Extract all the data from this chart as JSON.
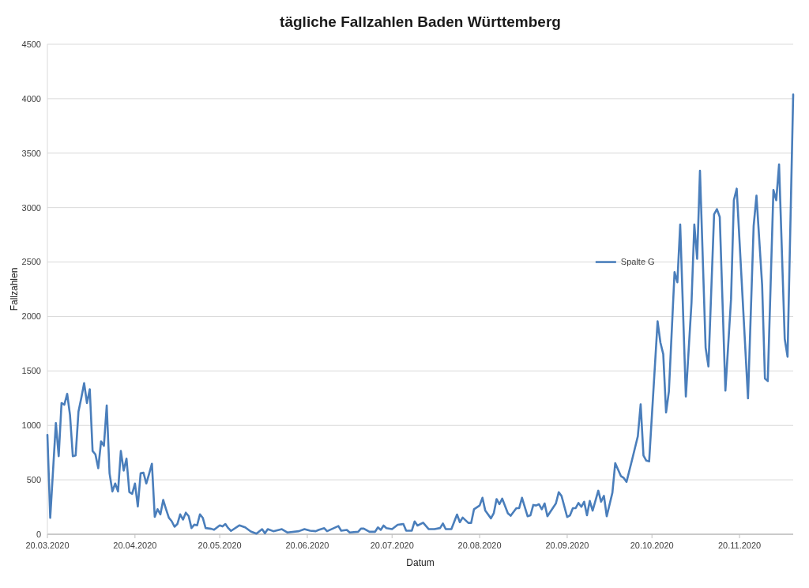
{
  "chart_data": {
    "type": "line",
    "title": "tägliche Fallzahlen Baden Württemberg",
    "xlabel": "Datum",
    "ylabel": "Fallzahlen",
    "x": [
      "2020-03-20",
      "2020-03-21",
      "2020-03-23",
      "2020-03-24",
      "2020-03-25",
      "2020-03-26",
      "2020-03-27",
      "2020-03-28",
      "2020-03-29",
      "2020-03-30",
      "2020-03-31",
      "2020-04-01",
      "2020-04-02",
      "2020-04-03",
      "2020-04-04",
      "2020-04-05",
      "2020-04-06",
      "2020-04-07",
      "2020-04-08",
      "2020-04-09",
      "2020-04-10",
      "2020-04-11",
      "2020-04-12",
      "2020-04-13",
      "2020-04-14",
      "2020-04-15",
      "2020-04-16",
      "2020-04-17",
      "2020-04-18",
      "2020-04-19",
      "2020-04-20",
      "2020-04-21",
      "2020-04-22",
      "2020-04-23",
      "2020-04-24",
      "2020-04-25",
      "2020-04-26",
      "2020-04-27",
      "2020-04-28",
      "2020-04-29",
      "2020-04-30",
      "2020-05-01",
      "2020-05-02",
      "2020-05-03",
      "2020-05-04",
      "2020-05-05",
      "2020-05-06",
      "2020-05-07",
      "2020-05-08",
      "2020-05-09",
      "2020-05-10",
      "2020-05-11",
      "2020-05-12",
      "2020-05-13",
      "2020-05-14",
      "2020-05-15",
      "2020-05-17",
      "2020-05-18",
      "2020-05-20",
      "2020-05-21",
      "2020-05-22",
      "2020-05-23",
      "2020-05-24",
      "2020-05-27",
      "2020-05-29",
      "2020-05-31",
      "2020-06-02",
      "2020-06-04",
      "2020-06-05",
      "2020-06-06",
      "2020-06-08",
      "2020-06-11",
      "2020-06-13",
      "2020-06-17",
      "2020-06-19",
      "2020-06-21",
      "2020-06-23",
      "2020-06-24",
      "2020-06-26",
      "2020-06-27",
      "2020-07-01",
      "2020-07-02",
      "2020-07-04",
      "2020-07-05",
      "2020-07-08",
      "2020-07-09",
      "2020-07-10",
      "2020-07-12",
      "2020-07-14",
      "2020-07-15",
      "2020-07-16",
      "2020-07-17",
      "2020-07-18",
      "2020-07-20",
      "2020-07-22",
      "2020-07-24",
      "2020-07-25",
      "2020-07-27",
      "2020-07-28",
      "2020-07-29",
      "2020-07-31",
      "2020-08-02",
      "2020-08-04",
      "2020-08-06",
      "2020-08-07",
      "2020-08-08",
      "2020-08-10",
      "2020-08-12",
      "2020-08-13",
      "2020-08-14",
      "2020-08-16",
      "2020-08-17",
      "2020-08-18",
      "2020-08-20",
      "2020-08-21",
      "2020-08-22",
      "2020-08-24",
      "2020-08-25",
      "2020-08-26",
      "2020-08-27",
      "2020-08-28",
      "2020-08-30",
      "2020-08-31",
      "2020-09-02",
      "2020-09-03",
      "2020-09-04",
      "2020-09-06",
      "2020-09-07",
      "2020-09-08",
      "2020-09-09",
      "2020-09-10",
      "2020-09-11",
      "2020-09-12",
      "2020-09-13",
      "2020-09-14",
      "2020-09-16",
      "2020-09-17",
      "2020-09-18",
      "2020-09-20",
      "2020-09-21",
      "2020-09-22",
      "2020-09-23",
      "2020-09-24",
      "2020-09-25",
      "2020-09-26",
      "2020-09-27",
      "2020-09-28",
      "2020-09-29",
      "2020-10-01",
      "2020-10-02",
      "2020-10-03",
      "2020-10-04",
      "2020-10-06",
      "2020-10-07",
      "2020-10-09",
      "2020-10-10",
      "2020-10-11",
      "2020-10-13",
      "2020-10-15",
      "2020-10-16",
      "2020-10-17",
      "2020-10-18",
      "2020-10-19",
      "2020-10-22",
      "2020-10-23",
      "2020-10-24",
      "2020-10-25",
      "2020-10-26",
      "2020-10-28",
      "2020-10-29",
      "2020-10-30",
      "2020-11-01",
      "2020-11-03",
      "2020-11-04",
      "2020-11-05",
      "2020-11-06",
      "2020-11-08",
      "2020-11-09",
      "2020-11-11",
      "2020-11-12",
      "2020-11-13",
      "2020-11-15",
      "2020-11-17",
      "2020-11-18",
      "2020-11-19",
      "2020-11-23",
      "2020-11-25",
      "2020-11-26",
      "2020-11-28",
      "2020-11-29",
      "2020-11-30",
      "2020-12-02",
      "2020-12-03",
      "2020-12-04",
      "2020-12-06",
      "2020-12-07",
      "2020-12-09"
    ],
    "series": [
      {
        "name": "Spalte G",
        "color": "#4a7ebb",
        "values": [
          913,
          151,
          1022,
          717,
          1205,
          1190,
          1290,
          1095,
          717,
          724,
          1127,
          1252,
          1388,
          1205,
          1331,
          765,
          733,
          607,
          853,
          812,
          1183,
          560,
          393,
          466,
          393,
          765,
          585,
          695,
          387,
          371,
          466,
          255,
          560,
          566,
          466,
          554,
          648,
          160,
          230,
          183,
          315,
          230,
          151,
          120,
          69,
          94,
          183,
          135,
          198,
          167,
          57,
          88,
          82,
          183,
          151,
          57,
          50,
          41,
          82,
          72,
          94,
          57,
          31,
          82,
          63,
          25,
          6,
          47,
          9,
          47,
          28,
          47,
          16,
          28,
          47,
          33,
          28,
          40,
          56,
          28,
          75,
          33,
          40,
          16,
          23,
          52,
          52,
          23,
          23,
          63,
          40,
          80,
          56,
          47,
          87,
          94,
          33,
          33,
          118,
          80,
          106,
          47,
          47,
          57,
          99,
          47,
          47,
          181,
          111,
          153,
          104,
          104,
          229,
          264,
          335,
          217,
          146,
          193,
          323,
          276,
          327,
          193,
          170,
          240,
          240,
          335,
          165,
          174,
          269,
          264,
          276,
          229,
          283,
          165,
          205,
          283,
          386,
          351,
          158,
          174,
          240,
          240,
          287,
          252,
          299,
          174,
          306,
          217,
          400,
          299,
          353,
          165,
          382,
          653,
          535,
          518,
          481,
          688,
          900,
          1194,
          723,
          676,
          669,
          1955,
          1760,
          1654,
          1119,
          1312,
          2408,
          2314,
          2844,
          1265,
          2125,
          2844,
          2530,
          3338,
          1713,
          1541,
          2938,
          2985,
          2914,
          1319,
          2160,
          3068,
          3174,
          1249,
          2832,
          3110,
          2290,
          1430,
          1407,
          3162,
          3068,
          3397,
          1795,
          1630,
          4038
        ]
      }
    ],
    "xlim": [
      "2020-03-20",
      "2020-12-09"
    ],
    "xticks": [
      {
        "value": "2020-03-20",
        "label": "20.03.2020"
      },
      {
        "value": "2020-04-20",
        "label": "20.04.2020"
      },
      {
        "value": "2020-05-20",
        "label": "20.05.2020"
      },
      {
        "value": "2020-06-20",
        "label": "20.06.2020"
      },
      {
        "value": "2020-07-20",
        "label": "20.07.2020"
      },
      {
        "value": "2020-08-20",
        "label": "20.08.2020"
      },
      {
        "value": "2020-09-20",
        "label": "20.09.2020"
      },
      {
        "value": "2020-10-20",
        "label": "20.10.2020"
      },
      {
        "value": "2020-11-20",
        "label": "20.11.2020"
      }
    ],
    "ylim": [
      0,
      4500
    ],
    "yticks": [
      0,
      500,
      1000,
      1500,
      2000,
      2500,
      3000,
      3500,
      4000,
      4500
    ],
    "grid": "y",
    "legend": "right",
    "marker": "none",
    "line_style": "solid"
  }
}
